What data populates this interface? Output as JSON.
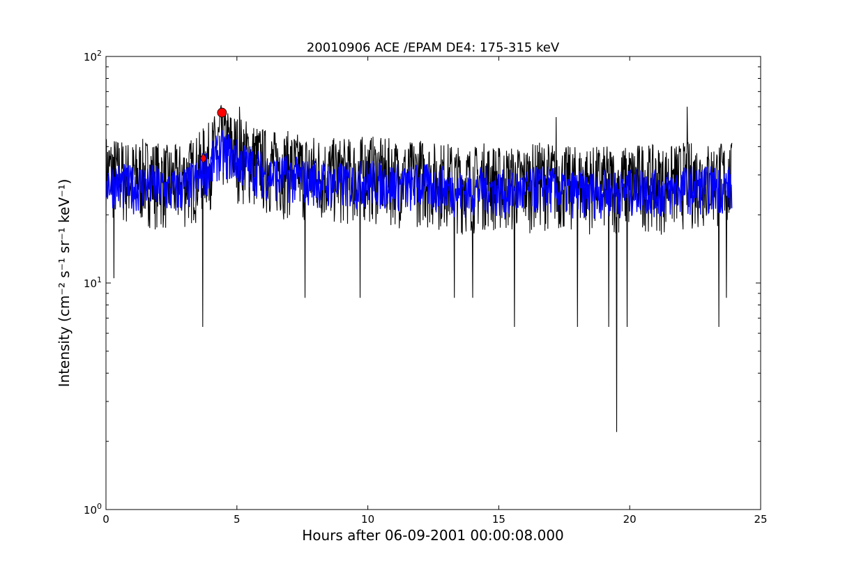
{
  "chart_data": {
    "type": "line",
    "title": "20010906 ACE /EPAM DE4: 175-315 keV",
    "xlabel": "Hours after 06-09-2001 00:00:08.000",
    "ylabel": "Intensity (cm⁻² s⁻¹ sr⁻¹ keV⁻¹)",
    "yscale": "log",
    "xlim": [
      0,
      25
    ],
    "ylim": [
      1,
      100
    ],
    "x_ticks": [
      0,
      5,
      10,
      15,
      20,
      25
    ],
    "x_tick_labels": [
      "0",
      "5",
      "10",
      "15",
      "20",
      "25"
    ],
    "y_ticks": [
      1,
      10,
      100
    ],
    "y_tick_labels": [
      {
        "base": "10",
        "exp": "0"
      },
      {
        "base": "10",
        "exp": "1"
      },
      {
        "base": "10",
        "exp": "2"
      }
    ],
    "grid": false,
    "legend": false,
    "series": [
      {
        "color": "#000000",
        "style": "raw",
        "x": [
          0.0,
          0.5,
          1.0,
          1.5,
          2.0,
          2.5,
          3.0,
          3.5,
          3.7,
          4.0,
          4.2,
          4.4,
          4.7,
          5.0,
          5.5,
          6.0,
          6.5,
          7.0,
          7.5,
          8.0,
          8.5,
          9.0,
          9.5,
          10.0,
          10.5,
          11.0,
          11.5,
          12.0,
          12.5,
          13.0,
          13.5,
          14.0,
          14.5,
          15.0,
          15.5,
          16.0,
          16.5,
          17.0,
          17.5,
          18.0,
          18.5,
          19.0,
          19.5,
          20.0,
          20.5,
          21.0,
          21.5,
          22.0,
          22.5,
          23.0,
          23.5,
          23.9
        ],
        "y": [
          27,
          26,
          25,
          26,
          25,
          24,
          25,
          27,
          29,
          31,
          34,
          36,
          35,
          33,
          31,
          29,
          28,
          28,
          27,
          27,
          26,
          26,
          26,
          27,
          26,
          26,
          25,
          26,
          25,
          25,
          24,
          24,
          25,
          24,
          24,
          24,
          25,
          25,
          24,
          24,
          24,
          24,
          24,
          24,
          25,
          24,
          24,
          25,
          25,
          25,
          25,
          25
        ],
        "noise_range": [
          17,
          42
        ],
        "spikes": [
          {
            "x": 0.3,
            "y": 10.5
          },
          {
            "x": 3.7,
            "y": 6.4
          },
          {
            "x": 4.4,
            "y": 61
          },
          {
            "x": 5.1,
            "y": 60
          },
          {
            "x": 7.6,
            "y": 8.6
          },
          {
            "x": 9.7,
            "y": 8.6
          },
          {
            "x": 13.3,
            "y": 8.6
          },
          {
            "x": 14.0,
            "y": 8.6
          },
          {
            "x": 15.6,
            "y": 6.4
          },
          {
            "x": 17.2,
            "y": 54
          },
          {
            "x": 18.0,
            "y": 6.4
          },
          {
            "x": 19.2,
            "y": 6.4
          },
          {
            "x": 19.5,
            "y": 2.2
          },
          {
            "x": 19.9,
            "y": 6.4
          },
          {
            "x": 22.2,
            "y": 60
          },
          {
            "x": 23.4,
            "y": 6.4
          },
          {
            "x": 23.7,
            "y": 8.6
          }
        ]
      },
      {
        "color": "#0000ff",
        "style": "smoothed",
        "x": [
          0.0,
          0.5,
          1.0,
          1.5,
          2.0,
          2.5,
          3.0,
          3.5,
          3.7,
          4.0,
          4.2,
          4.4,
          4.7,
          5.0,
          5.5,
          6.0,
          6.5,
          7.0,
          7.5,
          8.0,
          8.5,
          9.0,
          9.5,
          10.0,
          10.5,
          11.0,
          11.5,
          12.0,
          12.5,
          13.0,
          13.5,
          14.0,
          14.5,
          15.0,
          15.5,
          16.0,
          16.5,
          17.0,
          17.5,
          18.0,
          18.5,
          19.0,
          19.5,
          20.0,
          20.5,
          21.0,
          21.5,
          22.0,
          22.5,
          23.0,
          23.5,
          23.9
        ],
        "y": [
          27,
          26,
          25,
          26,
          25,
          24,
          25,
          27,
          29,
          31,
          34,
          36,
          35,
          33,
          31,
          29,
          28,
          28,
          27,
          27,
          26,
          26,
          26,
          27,
          26,
          26,
          25,
          26,
          25,
          25,
          24,
          24,
          25,
          24,
          24,
          24,
          25,
          25,
          24,
          24,
          24,
          24,
          24,
          24,
          25,
          24,
          24,
          25,
          25,
          25,
          25,
          25
        ],
        "noise_range": [
          20,
          33
        ]
      }
    ],
    "markers": [
      {
        "shape": "diamond",
        "x": 3.72,
        "y": 35.5,
        "color": "#ff0000"
      },
      {
        "shape": "circle",
        "x": 4.43,
        "y": 56.5,
        "color": "#ff0000"
      }
    ]
  }
}
